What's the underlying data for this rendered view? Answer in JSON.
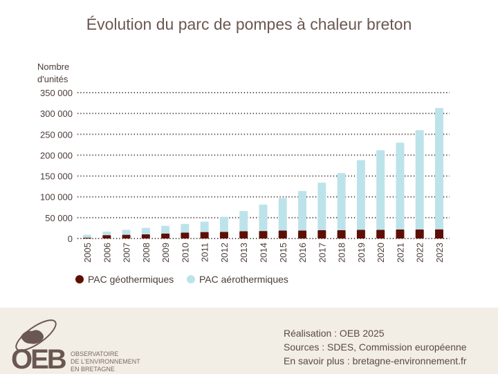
{
  "title": "Évolution du parc de pompes à chaleur breton",
  "chart_data": {
    "type": "bar",
    "stacked": true,
    "title": "Évolution du parc de pompes à chaleur breton",
    "ylabel": "Nombre d'unités",
    "ylabel_lines": [
      "Nombre",
      "d'unités"
    ],
    "xlabel": "",
    "ylim": [
      0,
      350000
    ],
    "yticks": [
      0,
      50000,
      100000,
      150000,
      200000,
      250000,
      300000,
      350000
    ],
    "ytick_labels": [
      "0",
      "50 000",
      "100 000",
      "150 000",
      "200 000",
      "250 000",
      "300 000",
      "350 000"
    ],
    "grid": true,
    "legend_position": "bottom-left",
    "categories": [
      "2005",
      "2006",
      "2007",
      "2008",
      "2009",
      "2010",
      "2011",
      "2012",
      "2013",
      "2014",
      "2015",
      "2016",
      "2017",
      "2018",
      "2019",
      "2020",
      "2021",
      "2022",
      "2023"
    ],
    "series": [
      {
        "name": "PAC géothermiques",
        "color": "#5e0f05",
        "values": [
          2000,
          8000,
          9000,
          10000,
          12000,
          14000,
          15500,
          16000,
          17500,
          18000,
          19000,
          19000,
          20000,
          20000,
          21000,
          21000,
          21500,
          21500,
          22000
        ]
      },
      {
        "name": "PAC aérothermiques",
        "color": "#bde3ea",
        "values": [
          7000,
          8500,
          12000,
          15500,
          18500,
          21000,
          25000,
          36000,
          48500,
          63500,
          78000,
          95000,
          114000,
          137000,
          167000,
          191000,
          208500,
          238500,
          291000
        ]
      }
    ]
  },
  "footer": {
    "logo_text": "OEB",
    "logo_subtitle": [
      "OBSERVATOIRE",
      "DE L'ENVIRONNEMENT",
      "EN BRETAGNE"
    ],
    "realisation": "Réalisation : OEB 2025",
    "sources": "Sources : SDES, Commission européenne",
    "more": "En savoir plus : bretagne-environnement.fr"
  }
}
